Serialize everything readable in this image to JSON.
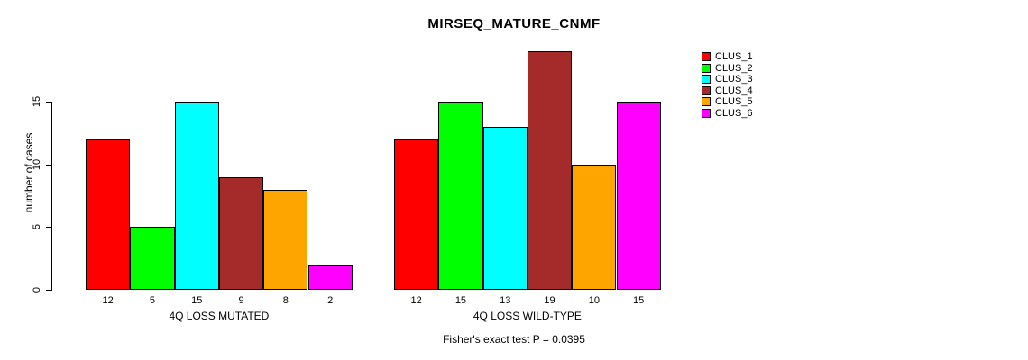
{
  "title": "MIRSEQ_MATURE_CNMF",
  "ylabel": "number of cases",
  "footer": "Fisher's exact test P = 0.0395",
  "chart_data": {
    "type": "bar",
    "title": "MIRSEQ_MATURE_CNMF",
    "ylabel": "number of cases",
    "xlabel": "",
    "annotation": "Fisher's exact test P = 0.0395",
    "groups": [
      {
        "label": "4Q LOSS MUTATED",
        "values": [
          12,
          5,
          15,
          9,
          8,
          2
        ]
      },
      {
        "label": "4Q LOSS WILD-TYPE",
        "values": [
          12,
          15,
          13,
          19,
          10,
          15
        ]
      }
    ],
    "series_names": [
      "CLUS_1",
      "CLUS_2",
      "CLUS_3",
      "CLUS_4",
      "CLUS_5",
      "CLUS_6"
    ],
    "colors": [
      "#FF0000",
      "#00FF00",
      "#00FFFF",
      "#A52A2A",
      "#FFA500",
      "#FF00FF"
    ],
    "yticks": [
      0,
      5,
      10,
      15
    ],
    "ylim": [
      0,
      19
    ],
    "grid": false,
    "legend_position": "right"
  }
}
